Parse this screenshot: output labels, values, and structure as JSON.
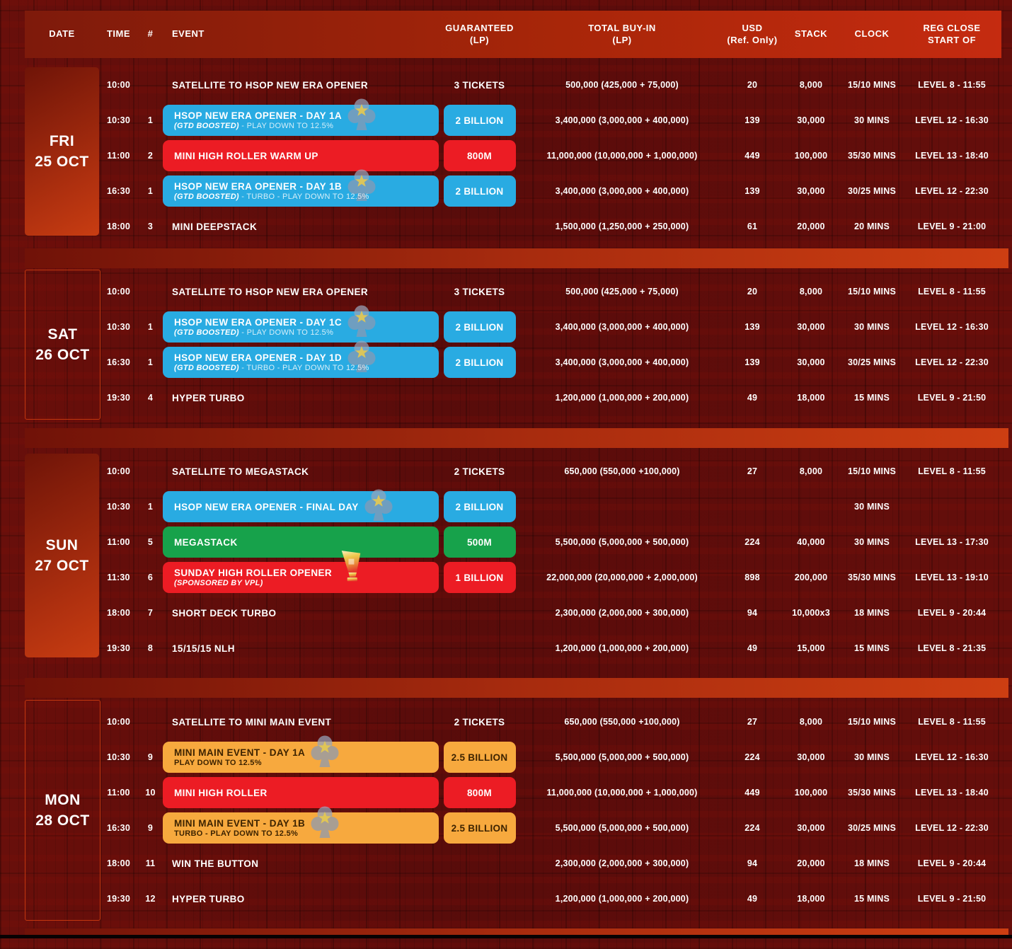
{
  "header": {
    "columns": [
      {
        "l1": "DATE",
        "l2": ""
      },
      {
        "l1": "TIME",
        "l2": ""
      },
      {
        "l1": "#",
        "l2": ""
      },
      {
        "l1": "EVENT",
        "l2": ""
      },
      {
        "l1": "GUARANTEED",
        "l2": "(LP)"
      },
      {
        "l1": "TOTAL BUY-IN",
        "l2": "(LP)"
      },
      {
        "l1": "USD",
        "l2": "(Ref. Only)"
      },
      {
        "l1": "STACK",
        "l2": ""
      },
      {
        "l1": "CLOCK",
        "l2": ""
      },
      {
        "l1": "REG CLOSE",
        "l2": "START OF"
      }
    ]
  },
  "colors": {
    "background": "#5B0C0B",
    "header_gradient_left": "#7E1A0B",
    "header_gradient_right": "#C52B10",
    "separator": "#C53A10",
    "accent_blue": "#29ABE2",
    "accent_red": "#EC1C24",
    "accent_green": "#17A24B",
    "accent_orange": "#F7A93E",
    "orange_text": "#3D2300"
  },
  "icons": {
    "club_star": "club-star-icon",
    "trophy": "trophy-icon"
  },
  "sections": [
    {
      "day": "FRI",
      "date": "25 OCT",
      "date_style": "filled",
      "rows": [
        {
          "time": "10:00",
          "num": "",
          "event": {
            "style": "plain",
            "title": "SATELLITE TO HSOP NEW ERA OPENER"
          },
          "gtd": {
            "style": "plain",
            "label": "3 TICKETS"
          },
          "buyin": "500,000 (425,000 + 75,000)",
          "usd": "20",
          "stack": "8,000",
          "clock": "15/10 MINS",
          "reg": "LEVEL 8 - 11:55"
        },
        {
          "time": "10:30",
          "num": "1",
          "event": {
            "style": "blue",
            "title": "HSOP NEW ERA OPENER - DAY 1A",
            "sub_bold": "(GTD BOOSTED)",
            "sub_rest": " - PLAY DOWN TO 12.5%",
            "icon": "club-star"
          },
          "gtd": {
            "style": "blue",
            "label": "2 BILLION"
          },
          "buyin": "3,400,000 (3,000,000 + 400,000)",
          "usd": "139",
          "stack": "30,000",
          "clock": "30 MINS",
          "reg": "LEVEL 12 - 16:30"
        },
        {
          "time": "11:00",
          "num": "2",
          "event": {
            "style": "red",
            "title": "MINI HIGH ROLLER WARM UP"
          },
          "gtd": {
            "style": "red",
            "label": "800M"
          },
          "buyin": "11,000,000 (10,000,000 + 1,000,000)",
          "usd": "449",
          "stack": "100,000",
          "clock": "35/30 MINS",
          "reg": "LEVEL 13 - 18:40"
        },
        {
          "time": "16:30",
          "num": "1",
          "event": {
            "style": "blue",
            "title": "HSOP NEW ERA OPENER - DAY 1B",
            "sub_bold": "(GTD BOOSTED)",
            "sub_rest": " - TURBO - PLAY DOWN TO 12.5%",
            "icon": "club-star"
          },
          "gtd": {
            "style": "blue",
            "label": "2 BILLION"
          },
          "buyin": "3,400,000 (3,000,000 + 400,000)",
          "usd": "139",
          "stack": "30,000",
          "clock": "30/25 MINS",
          "reg": "LEVEL 12 - 22:30"
        },
        {
          "time": "18:00",
          "num": "3",
          "event": {
            "style": "plain",
            "title": "MINI DEEPSTACK"
          },
          "gtd": {
            "style": "none",
            "label": ""
          },
          "buyin": "1,500,000 (1,250,000 + 250,000)",
          "usd": "61",
          "stack": "20,000",
          "clock": "20 MINS",
          "reg": "LEVEL 9 - 21:00"
        }
      ]
    },
    {
      "day": "SAT",
      "date": "26 OCT",
      "date_style": "outlined",
      "rows": [
        {
          "time": "10:00",
          "num": "",
          "event": {
            "style": "plain",
            "title": "SATELLITE TO HSOP NEW ERA OPENER"
          },
          "gtd": {
            "style": "plain",
            "label": "3 TICKETS"
          },
          "buyin": "500,000 (425,000 + 75,000)",
          "usd": "20",
          "stack": "8,000",
          "clock": "15/10 MINS",
          "reg": "LEVEL 8 - 11:55"
        },
        {
          "time": "10:30",
          "num": "1",
          "event": {
            "style": "blue",
            "title": "HSOP NEW ERA OPENER - DAY 1C",
            "sub_bold": "(GTD BOOSTED)",
            "sub_rest": " - PLAY DOWN TO 12.5%",
            "icon": "club-star"
          },
          "gtd": {
            "style": "blue",
            "label": "2 BILLION"
          },
          "buyin": "3,400,000 (3,000,000 + 400,000)",
          "usd": "139",
          "stack": "30,000",
          "clock": "30 MINS",
          "reg": "LEVEL 12 - 16:30"
        },
        {
          "time": "16:30",
          "num": "1",
          "event": {
            "style": "blue",
            "title": "HSOP NEW ERA OPENER - DAY 1D",
            "sub_bold": "(GTD BOOSTED)",
            "sub_rest": " - TURBO - PLAY DOWN TO 12.5%",
            "icon": "club-star"
          },
          "gtd": {
            "style": "blue",
            "label": "2 BILLION"
          },
          "buyin": "3,400,000 (3,000,000 + 400,000)",
          "usd": "139",
          "stack": "30,000",
          "clock": "30/25 MINS",
          "reg": "LEVEL 12 - 22:30"
        },
        {
          "time": "19:30",
          "num": "4",
          "event": {
            "style": "plain",
            "title": "HYPER TURBO"
          },
          "gtd": {
            "style": "none",
            "label": ""
          },
          "buyin": "1,200,000 (1,000,000 + 200,000)",
          "usd": "49",
          "stack": "18,000",
          "clock": "15 MINS",
          "reg": "LEVEL 9 - 21:50"
        }
      ]
    },
    {
      "day": "SUN",
      "date": "27 OCT",
      "date_style": "filled",
      "rows": [
        {
          "time": "10:00",
          "num": "",
          "event": {
            "style": "plain",
            "title": "SATELLITE TO MEGASTACK"
          },
          "gtd": {
            "style": "plain",
            "label": "2 TICKETS"
          },
          "buyin": "650,000 (550,000 +100,000)",
          "usd": "27",
          "stack": "8,000",
          "clock": "15/10 MINS",
          "reg": "LEVEL 8 - 11:55"
        },
        {
          "time": "10:30",
          "num": "1",
          "event": {
            "style": "blue",
            "title": "HSOP NEW ERA OPENER - FINAL DAY",
            "icon": "club-star"
          },
          "gtd": {
            "style": "blue",
            "label": "2 BILLION"
          },
          "buyin": "",
          "usd": "",
          "stack": "",
          "clock": "30 MINS",
          "reg": ""
        },
        {
          "time": "11:00",
          "num": "5",
          "event": {
            "style": "green",
            "title": "MEGASTACK"
          },
          "gtd": {
            "style": "green",
            "label": "500M"
          },
          "buyin": "5,500,000 (5,000,000 + 500,000)",
          "usd": "224",
          "stack": "40,000",
          "clock": "30 MINS",
          "reg": "LEVEL 13 - 17:30"
        },
        {
          "time": "11:30",
          "num": "6",
          "event": {
            "style": "red",
            "title": "SUNDAY HIGH ROLLER OPENER",
            "sub_bold": "(SPONSORED BY VPL)",
            "icon": "trophy"
          },
          "gtd": {
            "style": "red",
            "label": "1 BILLION"
          },
          "buyin": "22,000,000 (20,000,000 + 2,000,000)",
          "usd": "898",
          "stack": "200,000",
          "clock": "35/30 MINS",
          "reg": "LEVEL 13 - 19:10"
        },
        {
          "time": "18:00",
          "num": "7",
          "event": {
            "style": "plain",
            "title": "SHORT DECK TURBO"
          },
          "gtd": {
            "style": "none",
            "label": ""
          },
          "buyin": "2,300,000 (2,000,000 + 300,000)",
          "usd": "94",
          "stack": "10,000x3",
          "clock": "18 MINS",
          "reg": "LEVEL 9 - 20:44"
        },
        {
          "time": "19:30",
          "num": "8",
          "event": {
            "style": "plain",
            "title": "15/15/15 NLH"
          },
          "gtd": {
            "style": "none",
            "label": ""
          },
          "buyin": "1,200,000 (1,000,000 + 200,000)",
          "usd": "49",
          "stack": "15,000",
          "clock": "15 MINS",
          "reg": "LEVEL 8 - 21:35"
        }
      ]
    },
    {
      "day": "MON",
      "date": "28 OCT",
      "date_style": "outlined",
      "rows": [
        {
          "time": "10:00",
          "num": "",
          "event": {
            "style": "plain",
            "title": "SATELLITE TO MINI MAIN EVENT"
          },
          "gtd": {
            "style": "plain",
            "label": "2 TICKETS"
          },
          "buyin": "650,000 (550,000 +100,000)",
          "usd": "27",
          "stack": "8,000",
          "clock": "15/10 MINS",
          "reg": "LEVEL 8 - 11:55"
        },
        {
          "time": "10:30",
          "num": "9",
          "event": {
            "style": "orange",
            "title": "MINI MAIN EVENT - DAY 1A",
            "sub_rest": "PLAY DOWN TO 12.5%",
            "icon": "club-star"
          },
          "gtd": {
            "style": "orange",
            "label": "2.5 BILLION"
          },
          "buyin": "5,500,000 (5,000,000 + 500,000)",
          "usd": "224",
          "stack": "30,000",
          "clock": "30 MINS",
          "reg": "LEVEL 12 - 16:30"
        },
        {
          "time": "11:00",
          "num": "10",
          "event": {
            "style": "red",
            "title": "MINI HIGH ROLLER"
          },
          "gtd": {
            "style": "red",
            "label": "800M"
          },
          "buyin": "11,000,000 (10,000,000 + 1,000,000)",
          "usd": "449",
          "stack": "100,000",
          "clock": "35/30 MINS",
          "reg": "LEVEL 13 - 18:40"
        },
        {
          "time": "16:30",
          "num": "9",
          "event": {
            "style": "orange",
            "title": "MINI MAIN EVENT - DAY 1B",
            "sub_rest": "TURBO - PLAY DOWN TO 12.5%",
            "icon": "club-star"
          },
          "gtd": {
            "style": "orange",
            "label": "2.5 BILLION"
          },
          "buyin": "5,500,000 (5,000,000 + 500,000)",
          "usd": "224",
          "stack": "30,000",
          "clock": "30/25 MINS",
          "reg": "LEVEL 12 - 22:30"
        },
        {
          "time": "18:00",
          "num": "11",
          "event": {
            "style": "plain",
            "title": "WIN THE BUTTON"
          },
          "gtd": {
            "style": "none",
            "label": ""
          },
          "buyin": "2,300,000 (2,000,000 + 300,000)",
          "usd": "94",
          "stack": "20,000",
          "clock": "18 MINS",
          "reg": "LEVEL 9 - 20:44"
        },
        {
          "time": "19:30",
          "num": "12",
          "event": {
            "style": "plain",
            "title": "HYPER TURBO"
          },
          "gtd": {
            "style": "none",
            "label": ""
          },
          "buyin": "1,200,000 (1,000,000 + 200,000)",
          "usd": "49",
          "stack": "18,000",
          "clock": "15 MINS",
          "reg": "LEVEL 9 - 21:50"
        }
      ]
    }
  ]
}
